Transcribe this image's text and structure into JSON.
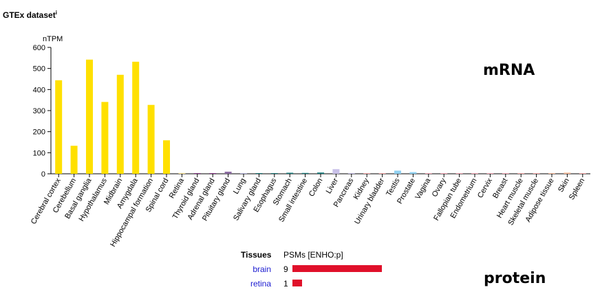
{
  "header": {
    "title": "GTEx dataset",
    "info_mark": "i"
  },
  "labels": {
    "mrna": "mRNA",
    "protein": "protein"
  },
  "chart_data": {
    "type": "bar",
    "ylabel": "nTPM",
    "xlabel": "",
    "ylim": [
      0,
      600
    ],
    "yticks": [
      0,
      100,
      200,
      300,
      400,
      500,
      600
    ],
    "grid": false,
    "categories": [
      "Cerebral cortex",
      "Cerebellum",
      "Basal ganglia",
      "Hypothalamus",
      "Midbrain",
      "Amygdala",
      "Hippocampal formation",
      "Spinal cord",
      "Retina",
      "Thyroid gland",
      "Adrenal gland",
      "Pituitary gland",
      "Lung",
      "Salivary gland",
      "Esophagus",
      "Stomach",
      "Small intestine",
      "Colon",
      "Liver",
      "Pancreas",
      "Kidney",
      "Urinary bladder",
      "Testis",
      "Prostate",
      "Vagina",
      "Ovary",
      "Fallopian tube",
      "Endometrium",
      "Cervix",
      "Breast",
      "Heart muscle",
      "Skeletal muscle",
      "Adipose tissue",
      "Skin",
      "Spleen"
    ],
    "values": [
      444,
      133,
      542,
      341,
      470,
      532,
      327,
      159,
      4,
      2,
      1,
      10,
      2,
      1,
      1,
      5,
      4,
      6,
      22,
      1,
      1,
      2,
      15,
      8,
      1,
      1,
      1,
      1,
      1,
      2,
      2,
      1,
      1,
      6,
      1
    ],
    "colors": [
      "#ffe000",
      "#ffe000",
      "#ffe000",
      "#ffe000",
      "#ffe000",
      "#ffe000",
      "#ffe000",
      "#ffe000",
      "#ffe89a",
      "#8a3a8a",
      "#8a3a8a",
      "#8a6aa0",
      "#b8b8e0",
      "#1a7a7a",
      "#1a7a7a",
      "#1a7a7a",
      "#1a7a7a",
      "#1a7a7a",
      "#c8c0e8",
      "#c8c0e8",
      "#ffb0b0",
      "#ffb0b0",
      "#8fd0f0",
      "#8fd0f0",
      "#ffb0c0",
      "#ffb0c0",
      "#ffb0c0",
      "#ffb0c0",
      "#ffb0c0",
      "#ffb0c0",
      "#ffb0b0",
      "#ffb0b0",
      "#ffc0a0",
      "#ffc0a0",
      "#ffb0b0"
    ]
  },
  "protein_table": {
    "col_tissues": "Tissues",
    "col_psms": "PSMs [ENHO:p]",
    "bar_color": "#e0102a",
    "max_psms": 9,
    "rows": [
      {
        "tissue": "brain",
        "psms": "9",
        "value": 9
      },
      {
        "tissue": "retina",
        "psms": "1",
        "value": 1
      }
    ]
  }
}
